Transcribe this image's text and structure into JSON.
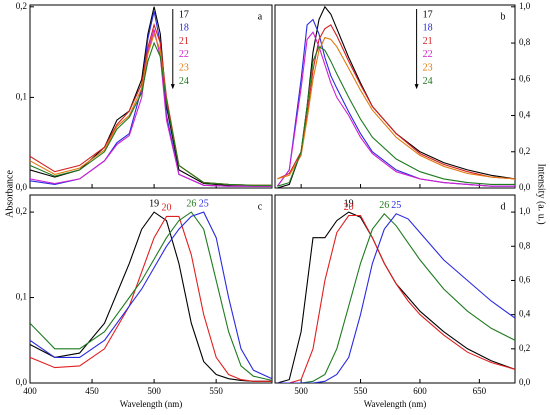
{
  "ylabel_left": "Absorbance",
  "ylabel_right": "Intensity (a. u.)",
  "chart_data": [
    {
      "type": "line",
      "label": "a",
      "xlim": [
        400,
        595
      ],
      "ylim": [
        0,
        0.202
      ],
      "xticks": [
        400,
        450,
        500,
        550
      ],
      "xtick_labels": false,
      "yticks": [
        {
          "value": 0,
          "label": "0,0"
        },
        {
          "value": 0.1,
          "label": "0,1"
        },
        {
          "value": 0.2,
          "label": "0,2"
        }
      ],
      "yaxis_side": "left",
      "legend": "list",
      "x": [
        400,
        420,
        440,
        460,
        470,
        480,
        490,
        495,
        500,
        505,
        510,
        520,
        540,
        560,
        580,
        595
      ],
      "series": [
        {
          "name": "17",
          "color": "#000000",
          "values": [
            0.02,
            0.012,
            0.02,
            0.045,
            0.075,
            0.085,
            0.12,
            0.17,
            0.2,
            0.17,
            0.09,
            0.02,
            0.005,
            0.003,
            0.002,
            0.002
          ]
        },
        {
          "name": "18",
          "color": "#2a2ae0",
          "values": [
            0.008,
            0.004,
            0.01,
            0.03,
            0.05,
            0.06,
            0.11,
            0.165,
            0.195,
            0.16,
            0.08,
            0.015,
            0.003,
            0.002,
            0.002,
            0.002
          ]
        },
        {
          "name": "21",
          "color": "#d42020",
          "values": [
            0.035,
            0.018,
            0.025,
            0.045,
            0.07,
            0.085,
            0.115,
            0.155,
            0.18,
            0.16,
            0.1,
            0.025,
            0.006,
            0.004,
            0.003,
            0.003
          ]
        },
        {
          "name": "22",
          "color": "#d020d0",
          "values": [
            0.01,
            0.005,
            0.01,
            0.03,
            0.048,
            0.058,
            0.1,
            0.15,
            0.175,
            0.145,
            0.075,
            0.015,
            0.003,
            0.002,
            0.002,
            0.002
          ]
        },
        {
          "name": "23",
          "color": "#e07a10",
          "values": [
            0.03,
            0.015,
            0.022,
            0.042,
            0.068,
            0.08,
            0.11,
            0.148,
            0.17,
            0.152,
            0.095,
            0.025,
            0.006,
            0.004,
            0.003,
            0.003
          ]
        },
        {
          "name": "24",
          "color": "#1e7a1e",
          "values": [
            0.025,
            0.013,
            0.02,
            0.04,
            0.065,
            0.078,
            0.105,
            0.14,
            0.16,
            0.145,
            0.095,
            0.025,
            0.006,
            0.004,
            0.003,
            0.003
          ]
        }
      ]
    },
    {
      "type": "line",
      "label": "b",
      "xlim": [
        478,
        680
      ],
      "ylim": [
        0,
        1.01
      ],
      "xticks": [
        500,
        550,
        600,
        650
      ],
      "xtick_labels": false,
      "yticks": [
        {
          "value": 0,
          "label": "0,0"
        },
        {
          "value": 0.2,
          "label": "0,2"
        },
        {
          "value": 0.4,
          "label": "0,4"
        },
        {
          "value": 0.6,
          "label": "0,6"
        },
        {
          "value": 0.8,
          "label": "0,8"
        },
        {
          "value": 1,
          "label": "1,0"
        }
      ],
      "yaxis_side": "right",
      "legend": "list",
      "x": [
        480,
        490,
        500,
        505,
        510,
        515,
        520,
        525,
        530,
        540,
        550,
        560,
        580,
        600,
        620,
        640,
        660,
        680
      ],
      "series": [
        {
          "name": "17",
          "color": "#000000",
          "values": [
            0.0,
            0.02,
            0.2,
            0.45,
            0.75,
            0.93,
            1.0,
            0.96,
            0.88,
            0.72,
            0.58,
            0.45,
            0.3,
            0.2,
            0.14,
            0.1,
            0.07,
            0.05
          ]
        },
        {
          "name": "18",
          "color": "#2a2ae0",
          "values": [
            0.01,
            0.1,
            0.6,
            0.9,
            0.93,
            0.85,
            0.72,
            0.62,
            0.55,
            0.42,
            0.3,
            0.2,
            0.1,
            0.05,
            0.03,
            0.02,
            0.01,
            0.01
          ]
        },
        {
          "name": "21",
          "color": "#d42020",
          "values": [
            0.05,
            0.08,
            0.2,
            0.4,
            0.65,
            0.82,
            0.88,
            0.9,
            0.84,
            0.7,
            0.57,
            0.45,
            0.3,
            0.19,
            0.13,
            0.09,
            0.06,
            0.05
          ]
        },
        {
          "name": "22",
          "color": "#d020d0",
          "values": [
            0.01,
            0.1,
            0.55,
            0.82,
            0.86,
            0.78,
            0.68,
            0.58,
            0.5,
            0.4,
            0.28,
            0.19,
            0.09,
            0.05,
            0.03,
            0.02,
            0.01,
            0.01
          ]
        },
        {
          "name": "23",
          "color": "#e07a10",
          "values": [
            0.05,
            0.07,
            0.18,
            0.38,
            0.6,
            0.76,
            0.83,
            0.82,
            0.78,
            0.66,
            0.54,
            0.43,
            0.28,
            0.18,
            0.12,
            0.08,
            0.06,
            0.05
          ]
        },
        {
          "name": "24",
          "color": "#1e7a1e",
          "values": [
            0.01,
            0.03,
            0.2,
            0.45,
            0.7,
            0.78,
            0.76,
            0.7,
            0.63,
            0.5,
            0.38,
            0.28,
            0.16,
            0.09,
            0.05,
            0.03,
            0.02,
            0.02
          ]
        }
      ]
    },
    {
      "type": "line",
      "label": "c",
      "xlim": [
        400,
        595
      ],
      "ylim": [
        0,
        0.22
      ],
      "xticks": [
        400,
        450,
        500,
        550
      ],
      "xtick_labels": true,
      "xlabel": "Wavelength (nm)",
      "yticks": [
        {
          "value": 0,
          "label": "0,0"
        },
        {
          "value": 0.1,
          "label": "0,1"
        },
        {
          "value": 0.2,
          "label": "0,2"
        }
      ],
      "yaxis_side": "left",
      "legend": "peak",
      "x": [
        400,
        420,
        440,
        460,
        480,
        490,
        500,
        510,
        520,
        530,
        540,
        550,
        560,
        570,
        580,
        595
      ],
      "series": [
        {
          "name": "19",
          "color": "#000000",
          "values": [
            0.045,
            0.03,
            0.035,
            0.07,
            0.14,
            0.18,
            0.2,
            0.19,
            0.14,
            0.07,
            0.025,
            0.01,
            0.005,
            0.003,
            0.002,
            0.002
          ]
        },
        {
          "name": "20",
          "color": "#e02020",
          "values": [
            0.03,
            0.018,
            0.02,
            0.04,
            0.09,
            0.13,
            0.17,
            0.195,
            0.195,
            0.15,
            0.08,
            0.03,
            0.01,
            0.004,
            0.002,
            0.002
          ]
        },
        {
          "name": "26",
          "color": "#1e7a1e",
          "values": [
            0.07,
            0.04,
            0.04,
            0.06,
            0.1,
            0.12,
            0.145,
            0.17,
            0.19,
            0.2,
            0.18,
            0.12,
            0.06,
            0.02,
            0.008,
            0.003
          ]
        },
        {
          "name": "25",
          "color": "#2a2ae0",
          "values": [
            0.05,
            0.03,
            0.03,
            0.05,
            0.09,
            0.11,
            0.135,
            0.16,
            0.18,
            0.195,
            0.2,
            0.17,
            0.1,
            0.04,
            0.015,
            0.005
          ]
        }
      ]
    },
    {
      "type": "line",
      "label": "d",
      "xlim": [
        478,
        680
      ],
      "ylim": [
        0,
        1.1
      ],
      "xticks": [
        500,
        550,
        600,
        650
      ],
      "xtick_labels": true,
      "xlabel": "Wavelength (nm)",
      "yticks": [
        {
          "value": 0,
          "label": "0,0"
        },
        {
          "value": 0.2,
          "label": "0,2"
        },
        {
          "value": 0.4,
          "label": "0,4"
        },
        {
          "value": 0.6,
          "label": "0,6"
        },
        {
          "value": 0.8,
          "label": "0,8"
        },
        {
          "value": 1,
          "label": "1,0"
        }
      ],
      "yaxis_side": "right",
      "legend": "peak",
      "x": [
        480,
        490,
        500,
        510,
        520,
        530,
        540,
        550,
        560,
        570,
        580,
        590,
        600,
        620,
        640,
        660,
        680
      ],
      "series": [
        {
          "name": "19",
          "color": "#000000",
          "values": [
            0.0,
            0.02,
            0.3,
            0.85,
            0.85,
            0.95,
            1.0,
            0.97,
            0.85,
            0.7,
            0.58,
            0.5,
            0.42,
            0.3,
            0.2,
            0.13,
            0.08
          ]
        },
        {
          "name": "20",
          "color": "#e02020",
          "values": [
            0.0,
            0.0,
            0.02,
            0.2,
            0.6,
            0.88,
            0.98,
            0.98,
            0.85,
            0.7,
            0.58,
            0.48,
            0.4,
            0.28,
            0.18,
            0.12,
            0.08
          ]
        },
        {
          "name": "26",
          "color": "#1e7a1e",
          "values": [
            0.0,
            0.0,
            0.0,
            0.01,
            0.05,
            0.2,
            0.45,
            0.7,
            0.9,
            0.99,
            0.92,
            0.82,
            0.72,
            0.55,
            0.42,
            0.32,
            0.25
          ]
        },
        {
          "name": "25",
          "color": "#2a2ae0",
          "values": [
            0,
            0,
            0,
            0,
            0.01,
            0.05,
            0.15,
            0.4,
            0.7,
            0.9,
            0.99,
            0.96,
            0.88,
            0.72,
            0.6,
            0.48,
            0.38
          ]
        }
      ]
    }
  ]
}
